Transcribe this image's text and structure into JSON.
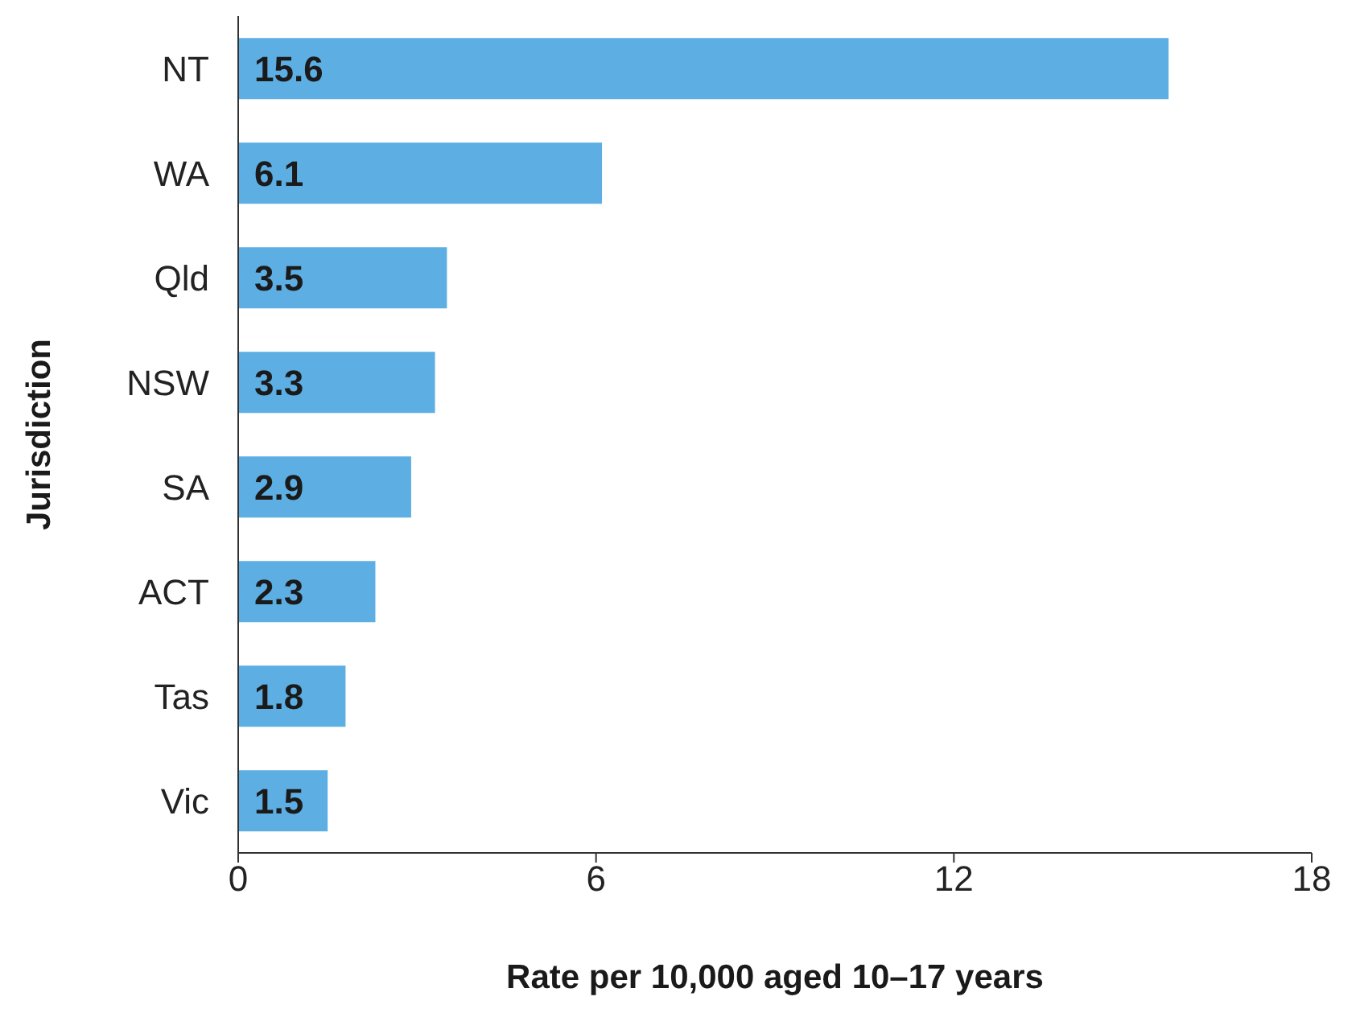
{
  "chart_data": {
    "type": "bar",
    "orientation": "horizontal",
    "xlabel": "Rate per 10,000 aged 10–17 years",
    "ylabel": "Jurisdiction",
    "categories": [
      "NT",
      "WA",
      "Qld",
      "NSW",
      "SA",
      "ACT",
      "Tas",
      "Vic"
    ],
    "values": [
      15.6,
      6.1,
      3.5,
      3.3,
      2.9,
      2.3,
      1.8,
      1.5
    ],
    "color": "#5daee2",
    "xlim": [
      0,
      18
    ],
    "xticks": [
      0,
      6,
      12,
      18
    ],
    "data_labels": true,
    "grid": false,
    "legend": false
  }
}
